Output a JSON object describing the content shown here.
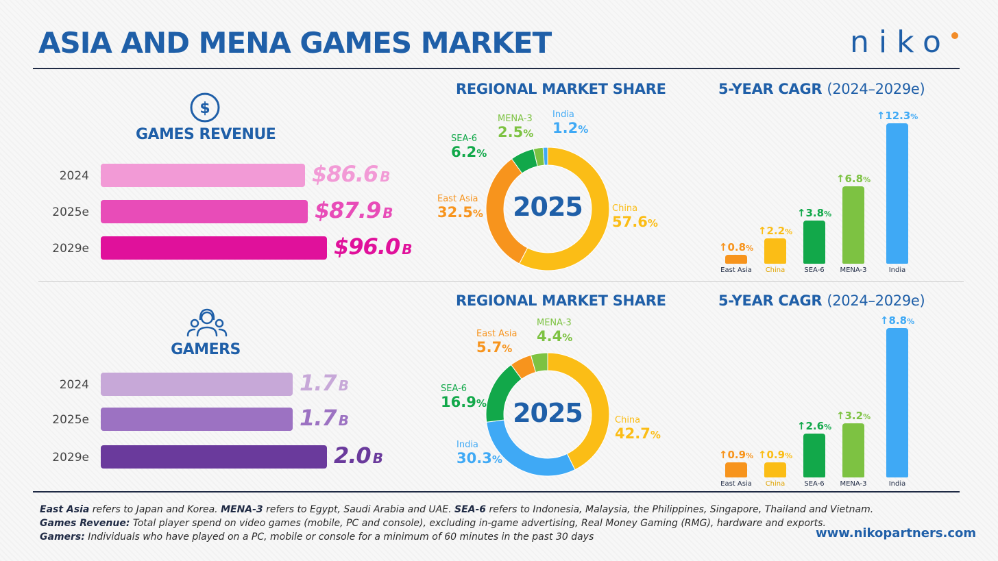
{
  "header": {
    "title": "ASIA AND MENA GAMES MARKET",
    "logo_text": "NIKO"
  },
  "footer": {
    "line1_parts": [
      {
        "b": "East Asia"
      },
      {
        "t": " refers to Japan and Korea. "
      },
      {
        "b": "MENA-3"
      },
      {
        "t": " refers to Egypt, Saudi Arabia and UAE. "
      },
      {
        "b": "SEA-6"
      },
      {
        "t": " refers to Indonesia, Malaysia, the Philippines, Singapore, Thailand and Vietnam."
      }
    ],
    "line2_parts": [
      {
        "b": "Games Revenue:"
      },
      {
        "t": " Total player spend on video games (mobile, PC and console), excluding in-game advertising, Real Money Gaming (RMG), hardware and exports."
      }
    ],
    "line3_parts": [
      {
        "b": "Gamers:"
      },
      {
        "t": " Individuals who have played on a PC, mobile or console for a minimum of 60 minutes in the past 30 days"
      }
    ],
    "website": "www.nikopartners.com"
  },
  "colors": {
    "china": "#fbbd16",
    "east_asia": "#f7941d",
    "sea6": "#12a84a",
    "mena3": "#7dc242",
    "india": "#3fa9f5",
    "revenue": [
      "#f29ad6",
      "#e84cb8",
      "#e0119b"
    ],
    "gamers": [
      "#c7a8d8",
      "#9c72c2",
      "#6a3a9c"
    ]
  },
  "chart_data": [
    {
      "type": "bar",
      "title": "GAMES REVENUE",
      "icon": "dollar-icon",
      "categories": [
        "2024",
        "2025e",
        "2029e"
      ],
      "values": [
        86.6,
        87.9,
        96.0
      ],
      "labels": [
        {
          "num": "$86.6",
          "unit": "B"
        },
        {
          "num": "$87.9",
          "unit": "B"
        },
        {
          "num": "$96.0",
          "unit": "B"
        }
      ]
    },
    {
      "type": "pie",
      "title": "REGIONAL MARKET SHARE",
      "center_label": "2025",
      "slices": [
        {
          "name": "China",
          "value": 57.6,
          "num": "57.6",
          "pct": "%",
          "color": "#fbbd16"
        },
        {
          "name": "East Asia",
          "value": 32.5,
          "num": "32.5",
          "pct": "%",
          "color": "#f7941d"
        },
        {
          "name": "SEA-6",
          "value": 6.2,
          "num": "6.2",
          "pct": "%",
          "color": "#12a84a"
        },
        {
          "name": "MENA-3",
          "value": 2.5,
          "num": "2.5",
          "pct": "%",
          "color": "#7dc242"
        },
        {
          "name": "India",
          "value": 1.2,
          "num": "1.2",
          "pct": "%",
          "color": "#3fa9f5"
        }
      ]
    },
    {
      "type": "bar",
      "title": "5-YEAR CAGR",
      "subtitle": "(2024–2029e)",
      "categories": [
        "East Asia",
        "China",
        "SEA-6",
        "MENA-3",
        "India"
      ],
      "values": [
        0.8,
        2.2,
        3.8,
        6.8,
        12.3
      ],
      "labels": [
        {
          "num": "0.8",
          "pct": "%"
        },
        {
          "num": "2.2",
          "pct": "%"
        },
        {
          "num": "3.8",
          "pct": "%"
        },
        {
          "num": "6.8",
          "pct": "%"
        },
        {
          "num": "12.3",
          "pct": "%"
        }
      ],
      "colors": [
        "#f7941d",
        "#fbbd16",
        "#12a84a",
        "#7dc242",
        "#3fa9f5"
      ]
    },
    {
      "type": "bar",
      "title": "GAMERS",
      "icon": "gamers-headset-icon",
      "categories": [
        "2024",
        "2025e",
        "2029e"
      ],
      "values": [
        1.7,
        1.7,
        2.0
      ],
      "labels": [
        {
          "num": "1.7",
          "unit": "B"
        },
        {
          "num": "1.7",
          "unit": "B"
        },
        {
          "num": "2.0",
          "unit": "B"
        }
      ]
    },
    {
      "type": "pie",
      "title": "REGIONAL MARKET SHARE",
      "center_label": "2025",
      "slices": [
        {
          "name": "China",
          "value": 42.7,
          "num": "42.7",
          "pct": "%",
          "color": "#fbbd16"
        },
        {
          "name": "India",
          "value": 30.3,
          "num": "30.3",
          "pct": "%",
          "color": "#3fa9f5"
        },
        {
          "name": "SEA-6",
          "value": 16.9,
          "num": "16.9",
          "pct": "%",
          "color": "#12a84a"
        },
        {
          "name": "East Asia",
          "value": 5.7,
          "num": "5.7",
          "pct": "%",
          "color": "#f7941d"
        },
        {
          "name": "MENA-3",
          "value": 4.4,
          "num": "4.4",
          "pct": "%",
          "color": "#7dc242"
        }
      ]
    },
    {
      "type": "bar",
      "title": "5-YEAR CAGR",
      "subtitle": "(2024–2029e)",
      "categories": [
        "East Asia",
        "China",
        "SEA-6",
        "MENA-3",
        "India"
      ],
      "values": [
        0.9,
        0.9,
        2.6,
        3.2,
        8.8
      ],
      "labels": [
        {
          "num": "0.9",
          "pct": "%"
        },
        {
          "num": "0.9",
          "pct": "%"
        },
        {
          "num": "2.6",
          "pct": "%"
        },
        {
          "num": "3.2",
          "pct": "%"
        },
        {
          "num": "8.8",
          "pct": "%"
        }
      ],
      "colors": [
        "#f7941d",
        "#fbbd16",
        "#12a84a",
        "#7dc242",
        "#3fa9f5"
      ]
    }
  ]
}
